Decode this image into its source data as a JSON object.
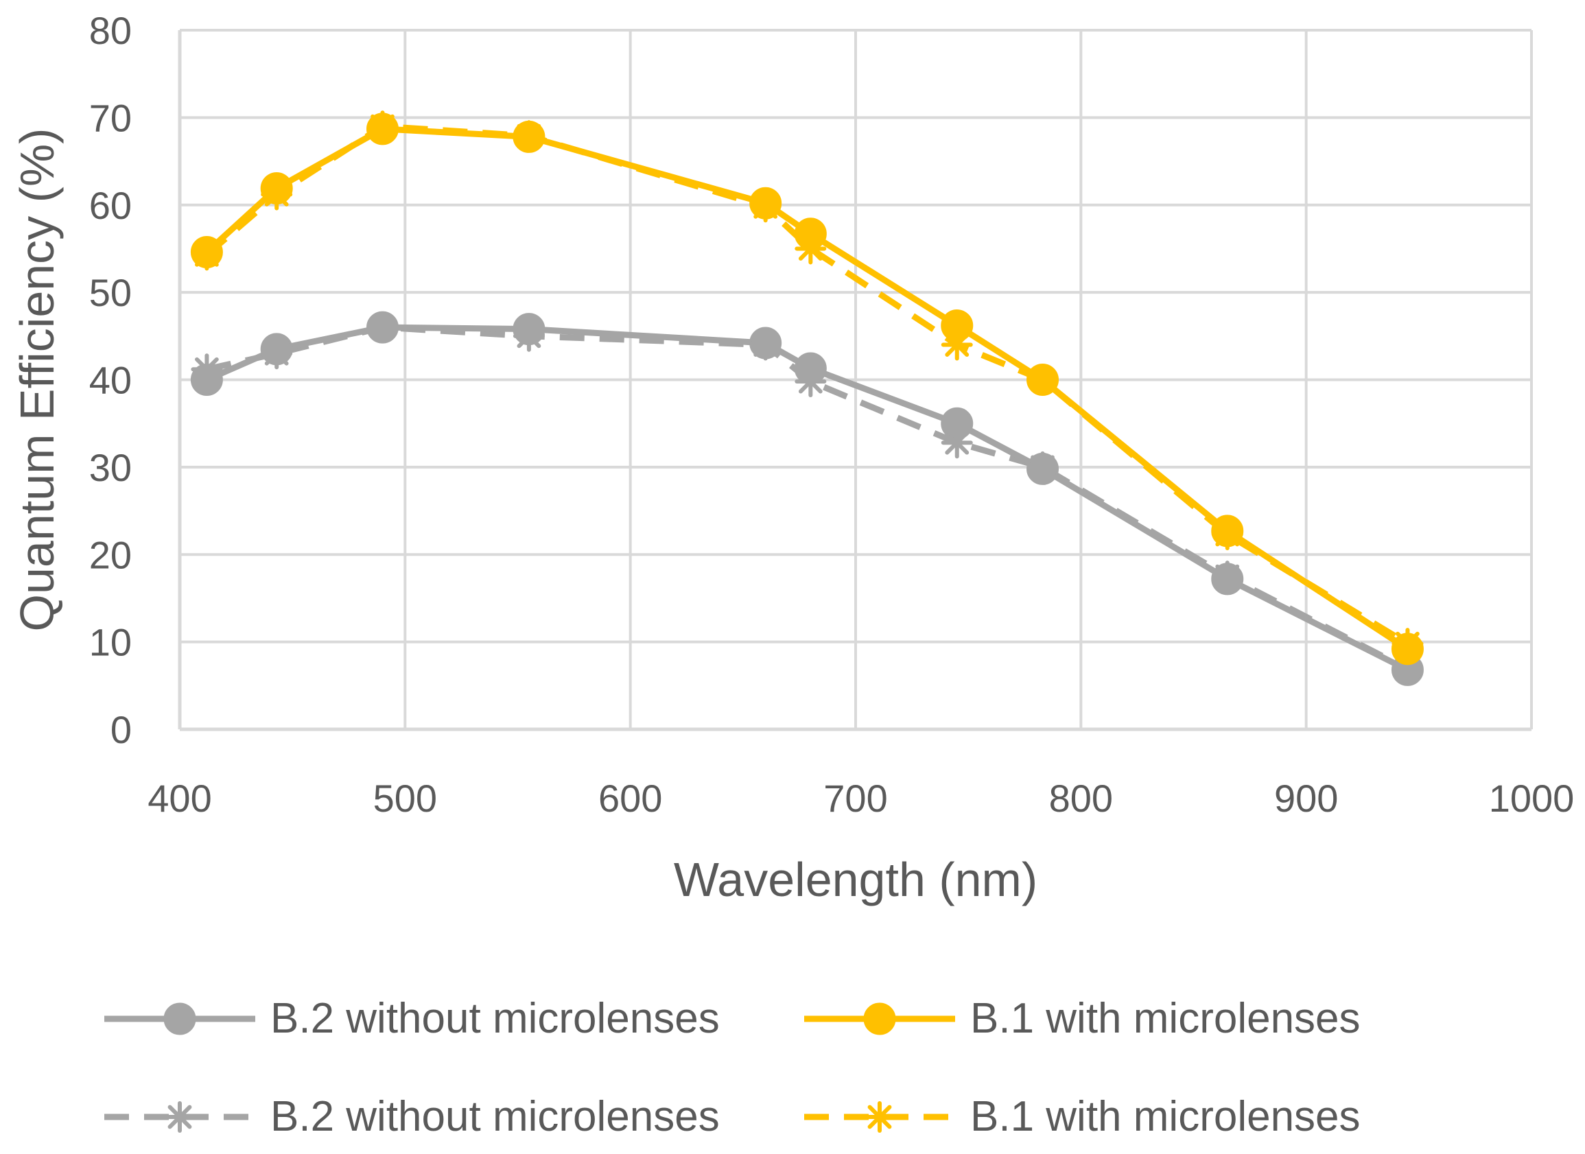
{
  "chart_data": {
    "type": "line",
    "title": "",
    "xlabel": "Wavelength (nm)",
    "ylabel": "Quantum Efficiency (%)",
    "xlim": [
      400,
      1000
    ],
    "ylim": [
      0,
      80
    ],
    "xticks": [
      400,
      500,
      600,
      700,
      800,
      900,
      1000
    ],
    "yticks": [
      0,
      10,
      20,
      30,
      40,
      50,
      60,
      70,
      80
    ],
    "grid": true,
    "legend_position": "bottom",
    "series": [
      {
        "name": "B.2 without microlenses",
        "color": "#a5a5a5",
        "line_style": "solid",
        "marker": "circle",
        "x": [
          412,
          443,
          490,
          555,
          660,
          680,
          745,
          783,
          865,
          945
        ],
        "y": [
          40.0,
          43.5,
          46.0,
          45.8,
          44.2,
          41.3,
          35.0,
          29.8,
          17.2,
          6.8
        ]
      },
      {
        "name": "B.1 with microlenses",
        "color": "#ffc000",
        "line_style": "solid",
        "marker": "circle",
        "x": [
          412,
          443,
          490,
          555,
          660,
          680,
          745,
          783,
          865,
          945
        ],
        "y": [
          54.6,
          61.9,
          68.7,
          67.8,
          60.2,
          56.7,
          46.2,
          40.0,
          22.7,
          9.2
        ]
      },
      {
        "name": "B.2 without microlenses",
        "color": "#a5a5a5",
        "line_style": "dashed",
        "marker": "star",
        "x": [
          412,
          443,
          490,
          555,
          660,
          680,
          745,
          783,
          865,
          945
        ],
        "y": [
          41.2,
          43.0,
          46.0,
          45.0,
          44.0,
          39.8,
          32.8,
          30.0,
          17.5,
          6.9
        ]
      },
      {
        "name": "B.1 with microlenses",
        "color": "#ffc000",
        "line_style": "dashed",
        "marker": "star",
        "x": [
          412,
          443,
          490,
          555,
          660,
          680,
          745,
          783,
          865,
          945
        ],
        "y": [
          54.3,
          61.2,
          69.0,
          67.9,
          59.8,
          55.0,
          44.0,
          40.0,
          22.3,
          9.8
        ]
      }
    ]
  }
}
